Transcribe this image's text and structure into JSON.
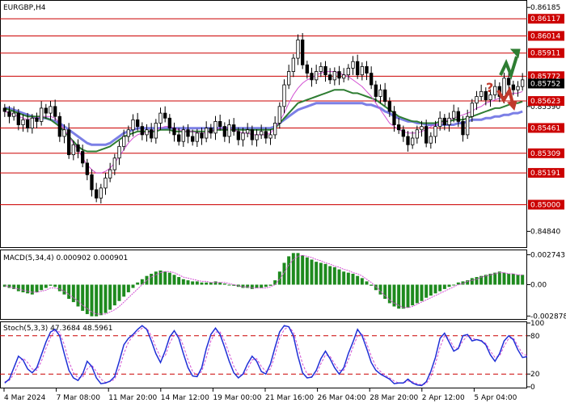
{
  "chart_data": [
    {
      "type": "candlestick",
      "title": "EURGBP,H4",
      "ylim": [
        0.8475,
        0.8622
      ],
      "y_ticks": [
        {
          "value": 0.86185,
          "label": "0.86185"
        },
        {
          "value": 0.86117,
          "label": "0.86117"
        },
        {
          "value": 0.86014,
          "label": "0.86014"
        },
        {
          "value": 0.85911,
          "label": "0.85911"
        },
        {
          "value": 0.85772,
          "label": "0.85772"
        },
        {
          "value": 0.85752,
          "label": "0.85752"
        },
        {
          "value": 0.85623,
          "label": "0.85623"
        },
        {
          "value": 0.8559,
          "label": "0.85590"
        },
        {
          "value": 0.85461,
          "label": "0.85461"
        },
        {
          "value": 0.85309,
          "label": "0.85309"
        },
        {
          "value": 0.85191,
          "label": "0.85191"
        },
        {
          "value": 0.85,
          "label": "0.85000"
        },
        {
          "value": 0.8484,
          "label": "0.84840"
        }
      ],
      "levels": [
        {
          "value": 0.86117,
          "label": "0.86117"
        },
        {
          "value": 0.86014,
          "label": "0.86014"
        },
        {
          "value": 0.85911,
          "label": "0.85911"
        },
        {
          "value": 0.85772,
          "label": "0.85772"
        },
        {
          "value": 0.85623,
          "label": "0.85623"
        },
        {
          "value": 0.85461,
          "label": "0.85461"
        },
        {
          "value": 0.85309,
          "label": "0.85309"
        },
        {
          "value": 0.85191,
          "label": "0.85191"
        },
        {
          "value": 0.85,
          "label": "0.85000"
        }
      ],
      "current_price": {
        "value": 0.85752,
        "label": "0.85752"
      },
      "close": [
        0.8556,
        0.8553,
        0.8555,
        0.8548,
        0.8551,
        0.8546,
        0.8552,
        0.855,
        0.8558,
        0.8555,
        0.8559,
        0.8553,
        0.8541,
        0.8545,
        0.853,
        0.8536,
        0.8532,
        0.8525,
        0.8518,
        0.8509,
        0.8504,
        0.851,
        0.8516,
        0.8521,
        0.8528,
        0.8535,
        0.8541,
        0.8545,
        0.8551,
        0.8547,
        0.8542,
        0.8545,
        0.854,
        0.8549,
        0.8555,
        0.8552,
        0.8546,
        0.8542,
        0.8538,
        0.8545,
        0.8541,
        0.8538,
        0.8543,
        0.854,
        0.8546,
        0.8543,
        0.855,
        0.8547,
        0.8541,
        0.8548,
        0.8544,
        0.8539,
        0.8543,
        0.8545,
        0.8539,
        0.8542,
        0.8544,
        0.854,
        0.8542,
        0.8549,
        0.8559,
        0.8572,
        0.858,
        0.8588,
        0.8599,
        0.8584,
        0.8579,
        0.8575,
        0.858,
        0.8583,
        0.8578,
        0.8575,
        0.858,
        0.8576,
        0.8578,
        0.8582,
        0.8586,
        0.8578,
        0.8583,
        0.8579,
        0.8572,
        0.8565,
        0.8569,
        0.8562,
        0.8556,
        0.8548,
        0.8545,
        0.8541,
        0.8536,
        0.854,
        0.8545,
        0.8547,
        0.8537,
        0.8541,
        0.8547,
        0.8552,
        0.8548,
        0.8552,
        0.8556,
        0.855,
        0.8542,
        0.8553,
        0.8561,
        0.8565,
        0.8568,
        0.8563,
        0.8566,
        0.8571,
        0.8565,
        0.8576,
        0.8572,
        0.8569,
        0.8571,
        0.8575
      ],
      "ema_slow": {
        "color": "#7b7fe6",
        "values": [
          0.8558,
          0.8558,
          0.8557,
          0.8556,
          0.8555,
          0.8554,
          0.8553,
          0.8552,
          0.8552,
          0.8552,
          0.8551,
          0.855,
          0.8549,
          0.8547,
          0.8545,
          0.8543,
          0.8541,
          0.8539,
          0.8537,
          0.8536,
          0.8536,
          0.8536,
          0.8536,
          0.8537,
          0.8539,
          0.8541,
          0.8543,
          0.8544,
          0.8545,
          0.8546,
          0.8546,
          0.8546,
          0.8546,
          0.8546,
          0.8546,
          0.8546,
          0.8546,
          0.8546,
          0.8546,
          0.8546,
          0.8546,
          0.8546,
          0.8546,
          0.8546,
          0.8546,
          0.8546,
          0.8546,
          0.8546,
          0.8546,
          0.8546,
          0.8546,
          0.8546,
          0.8546,
          0.8546,
          0.8546,
          0.8546,
          0.8546,
          0.8546,
          0.8546,
          0.8547,
          0.8549,
          0.8551,
          0.8553,
          0.8555,
          0.8557,
          0.8558,
          0.8559,
          0.856,
          0.8561,
          0.8561,
          0.8561,
          0.8561,
          0.8561,
          0.8561,
          0.8561,
          0.8561,
          0.8561,
          0.8561,
          0.8561,
          0.856,
          0.856,
          0.8559,
          0.8558,
          0.8556,
          0.8555,
          0.8553,
          0.8552,
          0.8551,
          0.855,
          0.855,
          0.8549,
          0.8549,
          0.8548,
          0.8548,
          0.8548,
          0.8548,
          0.8548,
          0.8548,
          0.8548,
          0.8549,
          0.8549,
          0.855,
          0.8551,
          0.8551,
          0.8551,
          0.8552,
          0.8552,
          0.8553,
          0.8553,
          0.8554,
          0.8554,
          0.8555,
          0.8555,
          0.8556
        ]
      },
      "ema_mid": {
        "color": "#2e7d32",
        "values": [
          0.8558,
          0.8557,
          0.8556,
          0.8555,
          0.8554,
          0.8553,
          0.8553,
          0.8553,
          0.8553,
          0.8552,
          0.8551,
          0.8549,
          0.8547,
          0.8544,
          0.8541,
          0.8538,
          0.8535,
          0.8533,
          0.8532,
          0.8532,
          0.8532,
          0.8533,
          0.8534,
          0.8535,
          0.8537,
          0.8539,
          0.8541,
          0.8542,
          0.8543,
          0.8544,
          0.8544,
          0.8544,
          0.8544,
          0.8544,
          0.8545,
          0.8545,
          0.8545,
          0.8544,
          0.8544,
          0.8544,
          0.8544,
          0.8544,
          0.8544,
          0.8544,
          0.8544,
          0.8544,
          0.8545,
          0.8545,
          0.8545,
          0.8545,
          0.8545,
          0.8545,
          0.8545,
          0.8545,
          0.8545,
          0.8545,
          0.8545,
          0.8545,
          0.8545,
          0.8546,
          0.8549,
          0.8552,
          0.8555,
          0.8558,
          0.8561,
          0.8562,
          0.8563,
          0.8564,
          0.8565,
          0.8566,
          0.8567,
          0.8568,
          0.8569,
          0.8569,
          0.8569,
          0.8568,
          0.8567,
          0.8567,
          0.8566,
          0.8565,
          0.8564,
          0.8563,
          0.8561,
          0.8559,
          0.8557,
          0.8555,
          0.8553,
          0.8552,
          0.8551,
          0.855,
          0.855,
          0.8549,
          0.8549,
          0.8549,
          0.8549,
          0.855,
          0.855,
          0.855,
          0.8551,
          0.8551,
          0.8551,
          0.8552,
          0.8553,
          0.8554,
          0.8555,
          0.8556,
          0.8557,
          0.8558,
          0.8558,
          0.8559,
          0.856,
          0.8561,
          0.8561,
          0.8562
        ]
      },
      "ma_fast": {
        "color": "#d24fd2",
        "values": [
          0.8556,
          0.8555,
          0.8554,
          0.8553,
          0.8552,
          0.8551,
          0.8552,
          0.8552,
          0.8553,
          0.8553,
          0.8553,
          0.8552,
          0.8549,
          0.8545,
          0.8541,
          0.8537,
          0.8533,
          0.8528,
          0.8524,
          0.8521,
          0.8519,
          0.8519,
          0.852,
          0.8522,
          0.8525,
          0.8529,
          0.8533,
          0.8537,
          0.854,
          0.8542,
          0.8543,
          0.8543,
          0.8544,
          0.8545,
          0.8546,
          0.8547,
          0.8547,
          0.8546,
          0.8545,
          0.8544,
          0.8544,
          0.8544,
          0.8543,
          0.8543,
          0.8543,
          0.8544,
          0.8545,
          0.8546,
          0.8546,
          0.8546,
          0.8545,
          0.8544,
          0.8543,
          0.8543,
          0.8542,
          0.8542,
          0.8542,
          0.8542,
          0.8543,
          0.8546,
          0.855,
          0.8555,
          0.8561,
          0.8566,
          0.857,
          0.8573,
          0.8575,
          0.8576,
          0.8578,
          0.8579,
          0.858,
          0.858,
          0.858,
          0.8579,
          0.8578,
          0.8577,
          0.8575,
          0.8573,
          0.8571,
          0.8568,
          0.8565,
          0.8561,
          0.8557,
          0.8553,
          0.8549,
          0.8547,
          0.8545,
          0.8544,
          0.8543,
          0.8543,
          0.8543,
          0.8544,
          0.8545,
          0.8547,
          0.8548,
          0.8549,
          0.855,
          0.8551,
          0.8552,
          0.8553,
          0.8554,
          0.8555,
          0.8556,
          0.8558,
          0.8559,
          0.8561,
          0.8562,
          0.8563,
          0.8564,
          0.8565,
          0.8566,
          0.8567,
          0.8567,
          0.8568
        ]
      },
      "annotations": [
        {
          "type": "arrow-up",
          "color": "#2e7d32"
        },
        {
          "type": "text",
          "text": "?",
          "color": "#c0392b"
        },
        {
          "type": "arrow-down",
          "color": "#c0392b"
        }
      ]
    },
    {
      "type": "bar",
      "title": "MACD(5,34,4) 0.000902 0.000901",
      "ylim": [
        -0.003,
        0.003
      ],
      "y_ticks": [
        {
          "value": 0.002743,
          "label": "0.002743"
        },
        {
          "value": 0.0,
          "label": "0.00"
        },
        {
          "value": -0.002878,
          "label": "-0.002878"
        }
      ],
      "values": [
        -0.0002,
        -0.0003,
        -0.0004,
        -0.0006,
        -0.0007,
        -0.0008,
        -0.0009,
        -0.0007,
        -0.0005,
        -0.0003,
        -0.0001,
        -0.0002,
        -0.0006,
        -0.0009,
        -0.0013,
        -0.0016,
        -0.002,
        -0.0024,
        -0.0027,
        -0.0029,
        -0.0029,
        -0.0028,
        -0.0026,
        -0.0023,
        -0.0019,
        -0.0015,
        -0.0011,
        -0.0007,
        -0.0003,
        0.0002,
        0.0005,
        0.0008,
        0.001,
        0.0012,
        0.0013,
        0.0012,
        0.0011,
        0.0009,
        0.0007,
        0.0005,
        0.0004,
        0.0003,
        0.0003,
        0.0002,
        0.0002,
        0.0002,
        0.0003,
        0.0002,
        0.0001,
        0.0,
        -0.0001,
        -0.0002,
        -0.0003,
        -0.0003,
        -0.0004,
        -0.0003,
        -0.0003,
        -0.0002,
        -0.0001,
        0.0004,
        0.0012,
        0.002,
        0.0026,
        0.0029,
        0.0029,
        0.0027,
        0.0025,
        0.0023,
        0.0021,
        0.002,
        0.0019,
        0.0017,
        0.0016,
        0.0014,
        0.0012,
        0.0011,
        0.001,
        0.0008,
        0.0006,
        0.0003,
        -0.0001,
        -0.0005,
        -0.0009,
        -0.0013,
        -0.0017,
        -0.002,
        -0.0022,
        -0.0022,
        -0.0021,
        -0.0019,
        -0.0017,
        -0.0015,
        -0.0012,
        -0.001,
        -0.0008,
        -0.0006,
        -0.0004,
        -0.0002,
        0.0,
        0.0002,
        0.0003,
        0.0004,
        0.0006,
        0.0007,
        0.0008,
        0.0009,
        0.001,
        0.0011,
        0.0012,
        0.0011,
        0.001,
        0.001,
        0.0009,
        0.0009
      ],
      "signal": {
        "color": "#d24fd2",
        "values": [
          -0.0001,
          -0.0002,
          -0.0003,
          -0.0004,
          -0.0005,
          -0.0006,
          -0.0007,
          -0.0007,
          -0.0006,
          -0.0005,
          -0.0003,
          -0.0003,
          -0.0004,
          -0.0006,
          -0.0009,
          -0.0012,
          -0.0015,
          -0.0019,
          -0.0022,
          -0.0025,
          -0.0027,
          -0.0027,
          -0.0027,
          -0.0025,
          -0.0023,
          -0.002,
          -0.0016,
          -0.0012,
          -0.0008,
          -0.0004,
          0.0,
          0.0004,
          0.0007,
          0.0009,
          0.0011,
          0.0012,
          0.0012,
          0.0011,
          0.0009,
          0.0007,
          0.0006,
          0.0005,
          0.0004,
          0.0003,
          0.0003,
          0.0002,
          0.0002,
          0.0002,
          0.0002,
          0.0001,
          0.0,
          -0.0001,
          -0.0002,
          -0.0002,
          -0.0003,
          -0.0003,
          -0.0003,
          -0.0003,
          -0.0002,
          0.0,
          0.0005,
          0.0011,
          0.0018,
          0.0023,
          0.0026,
          0.0027,
          0.0026,
          0.0025,
          0.0023,
          0.0022,
          0.002,
          0.0019,
          0.0017,
          0.0016,
          0.0014,
          0.0013,
          0.0011,
          0.001,
          0.0008,
          0.0005,
          0.0002,
          -0.0002,
          -0.0006,
          -0.001,
          -0.0014,
          -0.0017,
          -0.0019,
          -0.0021,
          -0.0021,
          -0.002,
          -0.0018,
          -0.0016,
          -0.0014,
          -0.0012,
          -0.001,
          -0.0008,
          -0.0006,
          -0.0004,
          -0.0002,
          0.0,
          0.0001,
          0.0003,
          0.0004,
          0.0005,
          0.0007,
          0.0008,
          0.0009,
          0.001,
          0.0011,
          0.0011,
          0.001,
          0.001,
          0.0009,
          0.0009
        ]
      }
    },
    {
      "type": "line",
      "title": "Stoch(5,3,3) 47.3684 48.5961",
      "ylim": [
        0,
        100
      ],
      "y_ticks": [
        {
          "value": 100,
          "label": "100"
        },
        {
          "value": 80,
          "label": "80"
        },
        {
          "value": 20,
          "label": "20"
        },
        {
          "value": 0,
          "label": "0"
        }
      ],
      "levels": [
        80,
        20
      ],
      "main": {
        "color": "#1f2fd6",
        "values": [
          6,
          12,
          30,
          48,
          42,
          28,
          22,
          30,
          50,
          70,
          86,
          90,
          80,
          52,
          26,
          14,
          10,
          20,
          40,
          32,
          14,
          5,
          6,
          9,
          16,
          40,
          66,
          76,
          82,
          90,
          96,
          90,
          72,
          52,
          38,
          56,
          78,
          88,
          76,
          52,
          30,
          17,
          16,
          30,
          60,
          82,
          92,
          82,
          62,
          40,
          22,
          14,
          20,
          36,
          48,
          40,
          24,
          20,
          36,
          62,
          86,
          96,
          94,
          80,
          48,
          22,
          14,
          15,
          26,
          44,
          56,
          44,
          30,
          20,
          30,
          52,
          70,
          90,
          80,
          60,
          38,
          26,
          20,
          16,
          12,
          5,
          6,
          6,
          12,
          6,
          3,
          2,
          8,
          24,
          46,
          76,
          84,
          70,
          56,
          60,
          80,
          82,
          72,
          74,
          72,
          66,
          50,
          40,
          52,
          72,
          80,
          74,
          58,
          46,
          47.4
        ]
      },
      "signal": {
        "color": "#d24fd2",
        "values": [
          8,
          10,
          20,
          36,
          45,
          38,
          28,
          26,
          40,
          60,
          78,
          88,
          86,
          66,
          40,
          22,
          14,
          15,
          28,
          34,
          24,
          12,
          7,
          8,
          12,
          28,
          52,
          70,
          80,
          86,
          92,
          92,
          80,
          62,
          46,
          48,
          68,
          82,
          82,
          64,
          42,
          24,
          18,
          24,
          46,
          72,
          86,
          86,
          72,
          52,
          32,
          20,
          18,
          28,
          42,
          44,
          32,
          24,
          28,
          50,
          76,
          90,
          94,
          86,
          62,
          36,
          20,
          16,
          20,
          36,
          50,
          48,
          36,
          26,
          26,
          42,
          62,
          80,
          84,
          68,
          48,
          32,
          24,
          18,
          14,
          9,
          6,
          6,
          9,
          8,
          5,
          3,
          5,
          16,
          36,
          62,
          80,
          76,
          62,
          60,
          72,
          80,
          76,
          74,
          73,
          68,
          56,
          46,
          48,
          64,
          76,
          77,
          64,
          52,
          48.6
        ]
      }
    }
  ],
  "x_labels": [
    "4 Mar 2024",
    "7 Mar 08:00",
    "11 Mar 20:00",
    "14 Mar 12:00",
    "19 Mar 00:00",
    "21 Mar 16:00",
    "26 Mar 04:00",
    "28 Mar 20:00",
    "2 Apr 12:00",
    "5 Apr 04:00"
  ],
  "colors": {
    "bull": "#ffffff",
    "bear": "#000000",
    "level_line": "#cc0000",
    "level_label_bg": "#cc0000",
    "macd_bar": "#1e8a1e",
    "current_label_bg": "#000000"
  }
}
